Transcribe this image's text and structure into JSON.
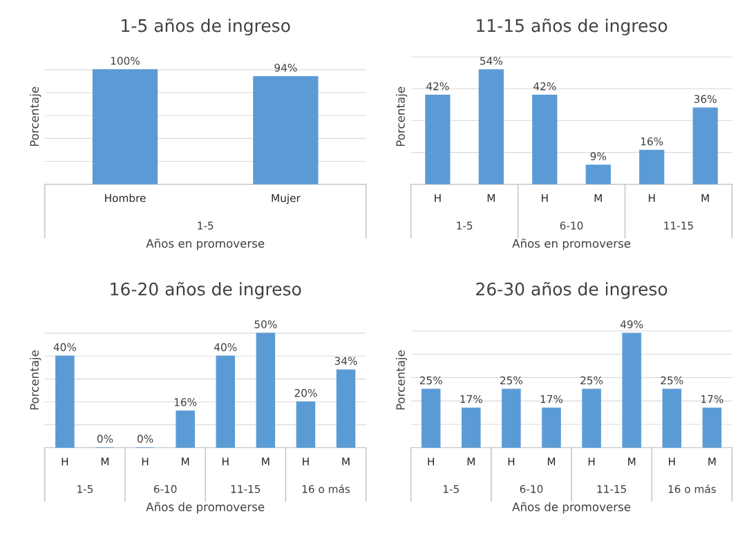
{
  "chart_data": [
    {
      "type": "bar",
      "title": "1-5 años de ingreso",
      "xlabel": "Años en promoverse",
      "ylabel": "Porcentaje",
      "categories": [
        "Hombre",
        "Mujer"
      ],
      "values": [
        100,
        94
      ],
      "value_labels": [
        "100%",
        "94%"
      ],
      "color": "#5b9bd5",
      "annotations": [
        "1-5"
      ],
      "grid": "y",
      "tick_labels": "x"
    },
    {
      "type": "bar",
      "title": "11-15 años de ingreso",
      "xlabel": "Años en promoverse",
      "ylabel": "Porcentaje",
      "categories": [
        "H",
        "M",
        "H",
        "M",
        "H",
        "M"
      ],
      "values": [
        42,
        54,
        42,
        9,
        16,
        36
      ],
      "value_labels": [
        "42%",
        "54%",
        "42%",
        "9%",
        "16%",
        "36%"
      ],
      "color": "#5b9bd5",
      "annotations": [
        "1-5",
        "6-10",
        "11-15"
      ],
      "grid": "y",
      "tick_labels": "x"
    },
    {
      "type": "bar",
      "title": "16-20 años de ingreso",
      "xlabel": "Años de promoverse",
      "ylabel": "Porcentaje",
      "categories": [
        "H",
        "M",
        "H",
        "M",
        "H",
        "M",
        "H",
        "M"
      ],
      "values": [
        40,
        0,
        0,
        16,
        40,
        50,
        20,
        34
      ],
      "value_labels": [
        "40%",
        "0%",
        "0%",
        "16%",
        "40%",
        "50%",
        "20%",
        "34%"
      ],
      "color": "#5b9bd5",
      "annotations": [
        "1-5",
        "6-10",
        "11-15",
        "16 o más"
      ],
      "grid": "y",
      "tick_labels": "x"
    },
    {
      "type": "bar",
      "title": "26-30 años de ingreso",
      "xlabel": "Años de promoverse",
      "ylabel": "Porcentaje",
      "categories": [
        "H",
        "M",
        "H",
        "M",
        "H",
        "M",
        "H",
        "M"
      ],
      "values": [
        25,
        17,
        25,
        17,
        25,
        49,
        25,
        17
      ],
      "value_labels": [
        "25%",
        "17%",
        "25%",
        "17%",
        "25%",
        "49%",
        "25%",
        "17%"
      ],
      "color": "#5b9bd5",
      "annotations": [
        "1-5",
        "6-10",
        "11-15",
        "16 o más"
      ],
      "grid": "y",
      "tick_labels": "x"
    }
  ]
}
